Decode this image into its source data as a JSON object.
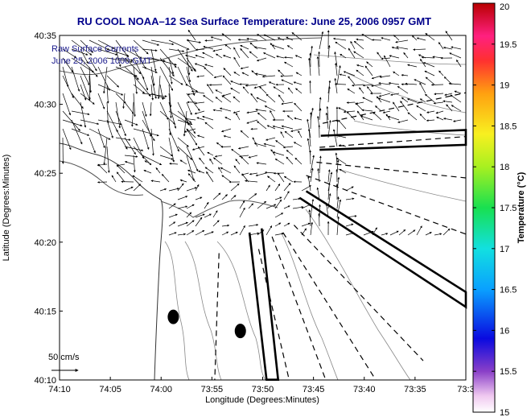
{
  "chart_data": {
    "type": "vector-field",
    "title": "RU COOL  NOAA–12  Sea Surface Temperature:  June 25, 2006 0957 GMT",
    "xlabel": "Longitude (Degrees:Minutes)",
    "ylabel": "Latitude (Degrees:Minutes)",
    "x_ticks": [
      "74:10",
      "74:05",
      "74:00",
      "73:55",
      "73:50",
      "73:45",
      "73:40",
      "73:35",
      "73:3"
    ],
    "y_ticks": [
      "40:10",
      "40:15",
      "40:20",
      "40:25",
      "40:30",
      "40:35"
    ],
    "xlim": [
      -74.1667,
      -73.5
    ],
    "ylim": [
      40.1667,
      40.5833
    ],
    "legend": {
      "line1": "Raw Surface Currents",
      "line2": "June 25, 2006 1000 GMT"
    },
    "scale_label": "50 cm/s",
    "colorbar": {
      "label": "Temperature (°C)",
      "ticks": [
        "15",
        "15.5",
        "16",
        "16.5",
        "17",
        "17.5",
        "18",
        "18.5",
        "19",
        "19.5",
        "20"
      ],
      "range": [
        15,
        20
      ]
    },
    "markers": [
      {
        "lon": -73.98,
        "lat": 40.243
      },
      {
        "lon": -73.87,
        "lat": 40.226
      }
    ],
    "sector_lines": [
      [
        [
          -73.735,
          40.477
        ],
        [
          -73.5,
          40.514
        ]
      ],
      [
        [
          -73.74,
          40.448
        ],
        [
          -73.5,
          40.461
        ]
      ],
      [
        [
          -73.745,
          40.43
        ],
        [
          -73.5,
          40.411
        ]
      ],
      [
        [
          -73.762,
          40.414
        ],
        [
          -73.5,
          40.343
        ]
      ],
      [
        [
          -73.782,
          40.354
        ],
        [
          -73.57,
          40.19
        ]
      ],
      [
        [
          -73.8,
          40.345
        ],
        [
          -73.648,
          40.167
        ]
      ],
      [
        [
          -73.818,
          40.34
        ],
        [
          -73.73,
          40.167
        ]
      ],
      [
        [
          -73.84,
          40.325
        ],
        [
          -73.79,
          40.167
        ]
      ],
      [
        [
          -73.905,
          40.32
        ],
        [
          -73.912,
          40.167
        ]
      ]
    ],
    "shipping_lanes": [
      [
        [
          -73.738,
          40.462
        ],
        [
          -73.5,
          40.469
        ],
        [
          -73.5,
          40.451
        ],
        [
          -73.74,
          40.445
        ]
      ],
      [
        [
          -73.762,
          40.395
        ],
        [
          -73.5,
          40.273
        ],
        [
          -73.5,
          40.255
        ],
        [
          -73.773,
          40.387
        ]
      ],
      [
        [
          -73.835,
          40.35
        ],
        [
          -73.808,
          40.167
        ],
        [
          -73.827,
          40.167
        ],
        [
          -73.855,
          40.345
        ]
      ]
    ]
  }
}
